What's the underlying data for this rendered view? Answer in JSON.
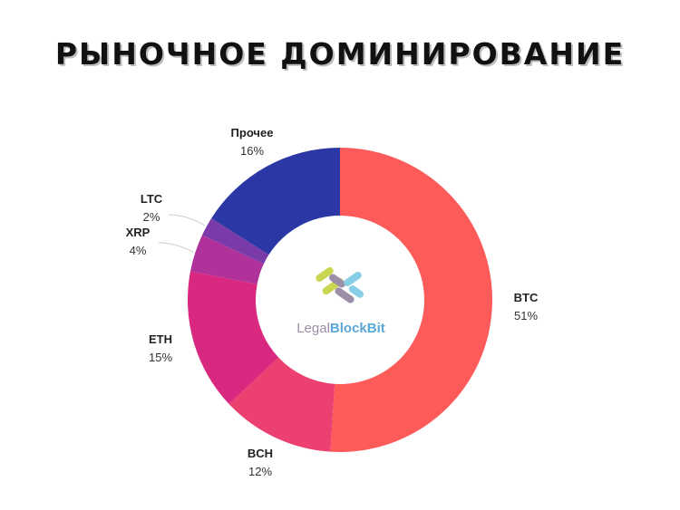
{
  "chart_data": {
    "type": "pie",
    "title": "РЫНОЧНОЕ ДОМИНИРОВАНИЕ",
    "donut": true,
    "slices": [
      {
        "label": "BTC",
        "value": 51,
        "display": "51%",
        "color": "#fc5b5a"
      },
      {
        "label": "BCH",
        "value": 12,
        "display": "12%",
        "color": "#ec4070"
      },
      {
        "label": "ETH",
        "value": 15,
        "display": "15%",
        "color": "#d9287f"
      },
      {
        "label": "XRP",
        "value": 4,
        "display": "4%",
        "color": "#b0319a"
      },
      {
        "label": "LTC",
        "value": 2,
        "display": "2%",
        "color": "#7a3aa8"
      },
      {
        "label": "Прочее",
        "value": 16,
        "display": "16%",
        "color": "#2a37a5"
      }
    ]
  },
  "logo": {
    "text_light": "Legal",
    "text_bold": "BlockBit",
    "colors": [
      "#c8d651",
      "#9b8ea6",
      "#86cfe6",
      "#2b3a8f"
    ]
  }
}
